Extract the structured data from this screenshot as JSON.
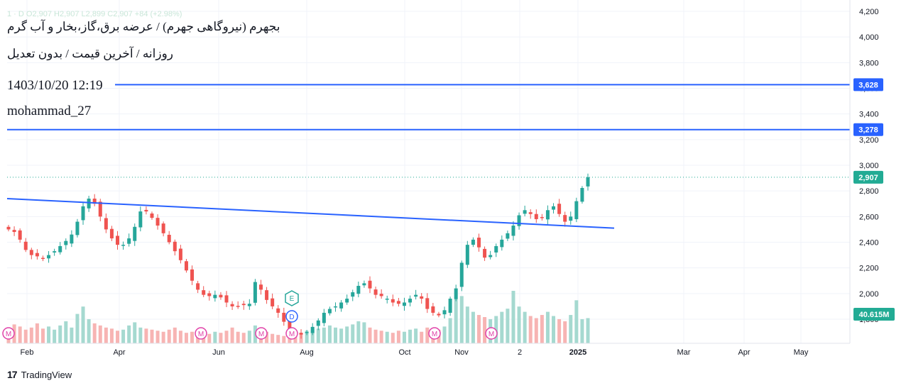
{
  "header": {
    "ohlc_text": "1 · D  O2,907  H2,907  L2,899  C2,907  +84 (+2.98%)",
    "title": "بجهرم (نیروگاهی جهرم) / عرضه برق،گاز،بخار و آب گرم",
    "subtitle": "روزانه / آخرین قیمت / بدون تعدیل",
    "datetime": "1403/10/20 12:19",
    "author": "mohammad_27"
  },
  "footer": {
    "brand": "TradingView"
  },
  "colors": {
    "up": "#26a69a",
    "down": "#ef5350",
    "line": "#2962ff",
    "price_badge": "#22ab94",
    "volume_badge": "#22ab94"
  },
  "chart_data": {
    "type": "candlestick",
    "y_axis": {
      "ticks": [
        4200,
        4000,
        3800,
        3600,
        3400,
        3200,
        3000,
        2800,
        2600,
        2400,
        2200,
        2000,
        1800
      ],
      "range": [
        1650,
        4240
      ]
    },
    "x_axis": {
      "labels": [
        "Feb",
        "Apr",
        "Jun",
        "Aug",
        "Oct",
        "Nov",
        "2",
        "2025",
        "Mar",
        "Apr",
        "May"
      ]
    },
    "horizontal_lines": [
      {
        "value": 3628,
        "label": "3,628"
      },
      {
        "value": 3278,
        "label": "3,278"
      }
    ],
    "trendline": {
      "from": {
        "date": "Jan 2024",
        "value": 2740
      },
      "to": {
        "date": "Jan 2025",
        "value": 2510
      }
    },
    "last_price": {
      "value": 2907,
      "label": "2,907"
    },
    "volume": {
      "last": "40.615M"
    },
    "markers": [
      {
        "label": "M"
      },
      {
        "label": "M"
      },
      {
        "label": "M"
      },
      {
        "label": "M"
      },
      {
        "label": "M"
      },
      {
        "label": "M"
      },
      {
        "label": "E"
      },
      {
        "label": "D"
      }
    ],
    "close_path": [
      2500,
      2480,
      2420,
      2340,
      2300,
      2290,
      2270,
      2300,
      2330,
      2370,
      2410,
      2460,
      2560,
      2680,
      2740,
      2700,
      2600,
      2500,
      2430,
      2380,
      2380,
      2430,
      2520,
      2640,
      2640,
      2590,
      2530,
      2470,
      2400,
      2330,
      2260,
      2180,
      2100,
      2030,
      1990,
      1980,
      1990,
      1970,
      1930,
      1900,
      1900,
      1910,
      1920,
      2090,
      2030,
      1950,
      1900,
      1850,
      1780,
      1720,
      1690,
      1680,
      1700,
      1740,
      1790,
      1850,
      1880,
      1900,
      1930,
      1960,
      2010,
      2060,
      2080,
      2040,
      1990,
      1980,
      1960,
      1930,
      1920,
      1930,
      1960,
      1990,
      1960,
      1880,
      1850,
      1830,
      1870,
      1960,
      2040,
      2240,
      2380,
      2420,
      2360,
      2280,
      2300,
      2370,
      2420,
      2470,
      2530,
      2610,
      2650,
      2620,
      2580,
      2590,
      2650,
      2680,
      2620,
      2560,
      2600,
      2720,
      2823,
      2907
    ],
    "volume_levels": [
      0.3,
      0.36,
      0.32,
      0.26,
      0.3,
      0.38,
      0.28,
      0.32,
      0.26,
      0.34,
      0.42,
      0.3,
      0.56,
      0.7,
      0.46,
      0.38,
      0.34,
      0.3,
      0.28,
      0.24,
      0.26,
      0.34,
      0.4,
      0.3,
      0.28,
      0.26,
      0.24,
      0.22,
      0.26,
      0.3,
      0.24,
      0.2,
      0.22,
      0.26,
      0.2,
      0.18,
      0.22,
      0.2,
      0.24,
      0.3,
      0.22,
      0.2,
      0.24,
      0.34,
      0.26,
      0.22,
      0.18,
      0.16,
      0.14,
      0.12,
      0.14,
      0.2,
      0.24,
      0.26,
      0.28,
      0.3,
      0.34,
      0.3,
      0.28,
      0.32,
      0.36,
      0.42,
      0.4,
      0.3,
      0.26,
      0.24,
      0.22,
      0.2,
      0.24,
      0.22,
      0.26,
      0.28,
      0.22,
      0.3,
      0.24,
      0.26,
      0.32,
      0.48,
      0.84,
      0.9,
      0.7,
      0.6,
      0.54,
      0.5,
      0.46,
      0.52,
      0.6,
      0.66,
      1.0,
      0.7,
      0.6,
      0.52,
      0.48,
      0.54,
      0.6,
      0.52,
      0.46,
      0.42,
      0.54,
      0.82,
      0.46,
      0.48
    ]
  }
}
